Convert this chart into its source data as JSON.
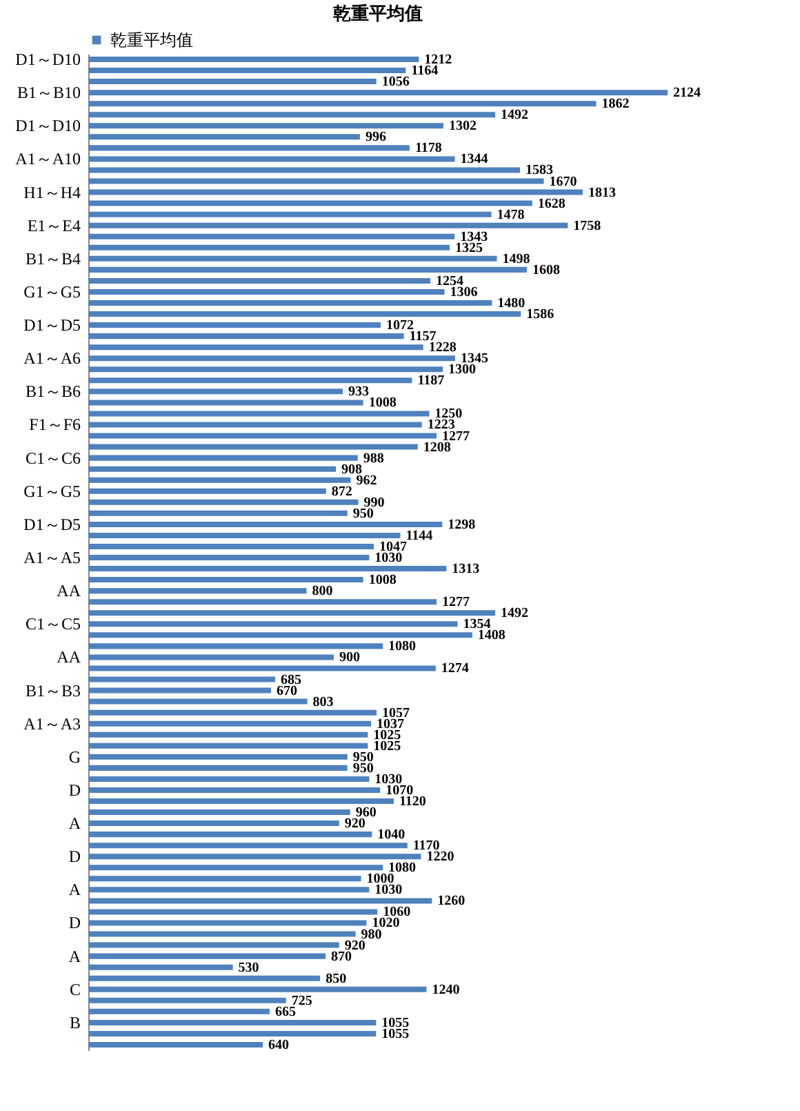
{
  "chart_data": {
    "type": "bar",
    "orientation": "horizontal",
    "title": "乾重平均值",
    "legend": "top",
    "data_labels": true,
    "categories": [
      "D1～D10",
      null,
      null,
      "B1～B10",
      null,
      null,
      "D1～D10",
      null,
      null,
      "A1～A10",
      null,
      null,
      "H1～H4",
      null,
      null,
      "E1～E4",
      null,
      null,
      "B1～B4",
      null,
      null,
      "G1～G5",
      null,
      null,
      "D1～D5",
      null,
      null,
      "A1～A6",
      null,
      null,
      "B1～B6",
      null,
      null,
      "F1～F6",
      null,
      null,
      "C1～C6",
      null,
      null,
      "G1～G5",
      null,
      null,
      "D1～D5",
      null,
      null,
      "A1～A5",
      null,
      null,
      "AA",
      null,
      null,
      "C1～C5",
      null,
      null,
      "AA",
      null,
      null,
      "B1～B3",
      null,
      null,
      "A1～A3",
      null,
      null,
      "G",
      null,
      null,
      "D",
      null,
      null,
      "A",
      null,
      null,
      "D",
      null,
      null,
      "A",
      null,
      null,
      "D",
      null,
      null,
      "A",
      null,
      null,
      "C",
      null,
      null,
      "B",
      null,
      null
    ],
    "series": [
      {
        "name": "乾重平均值",
        "color": "#4f81bd",
        "values": [
          1212,
          1164,
          1056,
          2124,
          1862,
          1492,
          1302,
          996,
          1178,
          1344,
          1583,
          1670,
          1813,
          1628,
          1478,
          1758,
          1343,
          1325,
          1498,
          1608,
          1254,
          1306,
          1480,
          1586,
          1072,
          1157,
          1228,
          1345,
          1300,
          1187,
          933,
          1008,
          1250,
          1223,
          1277,
          1208,
          988,
          908,
          962,
          872,
          990,
          950,
          1298,
          1144,
          1047,
          1030,
          1313,
          1008,
          800,
          1277,
          1492,
          1354,
          1408,
          1080,
          900,
          1274,
          685,
          670,
          803,
          1057,
          1037,
          1025,
          1025,
          950,
          950,
          1030,
          1070,
          1120,
          960,
          920,
          1040,
          1170,
          1220,
          1080,
          1000,
          1030,
          1260,
          1060,
          1020,
          980,
          920,
          870,
          530,
          850,
          1240,
          725,
          665,
          1055,
          1055,
          640
        ]
      }
    ]
  }
}
